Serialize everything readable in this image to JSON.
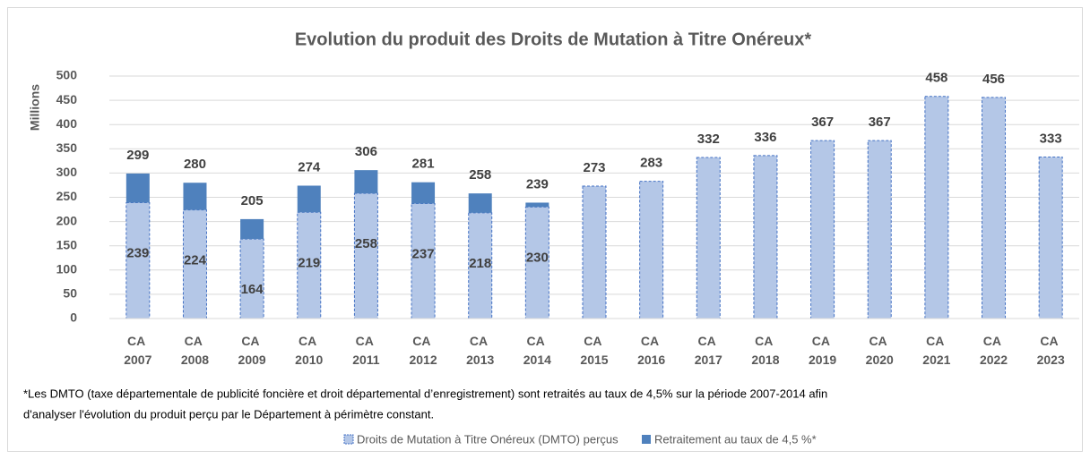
{
  "chart_data": {
    "type": "stacked_bar",
    "title": "Evolution du produit des Droits de Mutation à Titre Onéreux*",
    "y_label": "Millions",
    "categories": [
      "CA 2007",
      "CA 2008",
      "CA 2009",
      "CA 2010",
      "CA 2011",
      "CA 2012",
      "CA 2013",
      "CA 2014",
      "CA 2015",
      "CA 2016",
      "CA 2017",
      "CA 2018",
      "CA 2019",
      "CA 2020",
      "CA 2021",
      "CA 2022",
      "CA 2023"
    ],
    "series": [
      {
        "name": "Droits de Mutation à Titre Onéreux (DMTO) perçus",
        "color": "#b4c7e7",
        "border": "#4472c4",
        "values": [
          239,
          224,
          164,
          219,
          258,
          237,
          218,
          230,
          273,
          283,
          332,
          336,
          367,
          367,
          458,
          456,
          333
        ]
      },
      {
        "name": "Retraitement au taux de 4,5 %*",
        "color": "#4f81bd",
        "values": [
          60,
          56,
          41,
          55,
          48,
          44,
          40,
          9,
          null,
          null,
          null,
          null,
          null,
          null,
          null,
          null,
          null
        ]
      }
    ],
    "totals": [
      299,
      280,
      205,
      274,
      306,
      281,
      258,
      239,
      273,
      283,
      332,
      336,
      367,
      367,
      458,
      456,
      333
    ],
    "ylim": [
      0,
      500
    ],
    "yticks": [
      0,
      50,
      100,
      150,
      200,
      250,
      300,
      350,
      400,
      450,
      500
    ],
    "grid": true,
    "footnote": [
      "*Les DMTO (taxe départementale de publicité foncière et droit départemental d’enregistrement) sont retraités au taux de 4,5% sur la période 2007-2014 afin",
      "d'analyser l'évolution du produit perçu par le Département à périmètre constant."
    ]
  }
}
